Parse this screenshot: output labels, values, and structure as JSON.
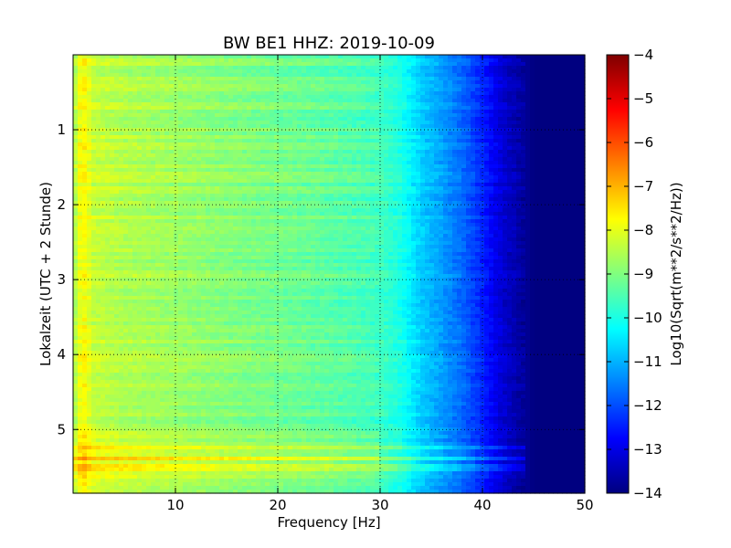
{
  "chart_data": {
    "type": "heatmap",
    "title": "BW BE1 HHZ: 2019-10-09",
    "xlabel": "Frequency [Hz]",
    "ylabel": "Lokalzeit (UTC + 2 Stunde)",
    "colorbar_label": "Log10(Sqrt(m**2/s**2/Hz))",
    "xlim": [
      0,
      50
    ],
    "ylim": [
      0,
      5.85
    ],
    "y_inverted": true,
    "x_ticks": [
      10,
      20,
      30,
      40,
      50
    ],
    "x_tick_labels": [
      "10",
      "20",
      "30",
      "40",
      "50"
    ],
    "y_ticks": [
      1,
      2,
      3,
      4,
      5
    ],
    "y_tick_labels": [
      "1",
      "2",
      "3",
      "4",
      "5"
    ],
    "color_range": [
      -14,
      -4
    ],
    "colorbar_ticks": [
      -4,
      -5,
      -6,
      -7,
      -8,
      -9,
      -10,
      -11,
      -12,
      -13,
      -14
    ],
    "colorbar_tick_labels": [
      "−4",
      "−5",
      "−6",
      "−7",
      "−8",
      "−9",
      "−10",
      "−11",
      "−12",
      "−13",
      "−14"
    ],
    "colormap": "jet",
    "grid": true,
    "profile": {
      "frequency_hz": [
        0,
        0.5,
        1,
        2,
        5,
        10,
        15,
        20,
        25,
        30,
        32,
        34,
        36,
        38,
        40,
        42,
        44,
        45,
        50
      ],
      "log10_amplitude": [
        -8.8,
        -8.0,
        -7.7,
        -8.3,
        -8.5,
        -8.7,
        -8.9,
        -9.1,
        -9.3,
        -9.6,
        -10.0,
        -10.7,
        -11.2,
        -11.7,
        -12.4,
        -13.2,
        -13.7,
        -14.0,
        -14.0
      ]
    },
    "bright_bands_local_time": [
      5.23,
      5.38,
      5.5
    ]
  }
}
